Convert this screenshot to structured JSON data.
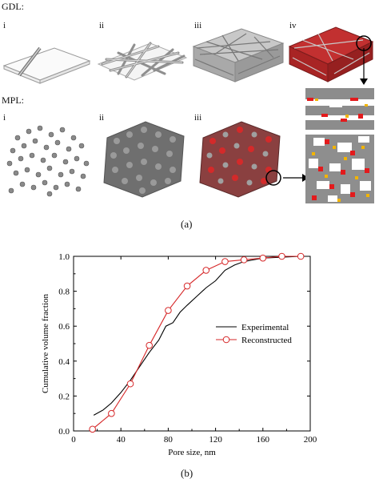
{
  "panel_a": {
    "gdl_label": "GDL:",
    "mpl_label": "MPL:",
    "gdl_steps": [
      "i",
      "ii",
      "iii",
      "iv"
    ],
    "mpl_steps": [
      "i",
      "ii",
      "iii"
    ],
    "caption": "(a)"
  },
  "panel_b": {
    "caption": "(b)"
  },
  "chart_data": {
    "type": "line",
    "xlabel": "Pore size, nm",
    "ylabel": "Cumulative volume fraction",
    "xlim": [
      0,
      200
    ],
    "ylim": [
      0.0,
      1.0
    ],
    "xticks": [
      "0",
      "40",
      "80",
      "120",
      "160",
      "200"
    ],
    "yticks": [
      "0.0",
      "0.2",
      "0.4",
      "0.6",
      "0.8",
      "1.0"
    ],
    "legend_position": "center-right",
    "grid": false,
    "series": [
      {
        "name": "Experimental",
        "color": "#000000",
        "marker": "none",
        "x": [
          17,
          25,
          32,
          40,
          48,
          56,
          64,
          72,
          78,
          84,
          90,
          96,
          104,
          112,
          120,
          128,
          136,
          144,
          152,
          160,
          176,
          192
        ],
        "y": [
          0.09,
          0.12,
          0.16,
          0.22,
          0.29,
          0.37,
          0.45,
          0.52,
          0.6,
          0.62,
          0.68,
          0.72,
          0.77,
          0.82,
          0.86,
          0.92,
          0.95,
          0.97,
          0.98,
          0.99,
          0.995,
          1.0
        ]
      },
      {
        "name": "Reconstructed",
        "color": "#d62728",
        "marker": "circle",
        "x": [
          16,
          32,
          48,
          64,
          80,
          96,
          112,
          128,
          144,
          160,
          176,
          192
        ],
        "y": [
          0.01,
          0.1,
          0.27,
          0.49,
          0.69,
          0.83,
          0.92,
          0.97,
          0.98,
          0.99,
          1.0,
          1.0
        ]
      }
    ]
  }
}
